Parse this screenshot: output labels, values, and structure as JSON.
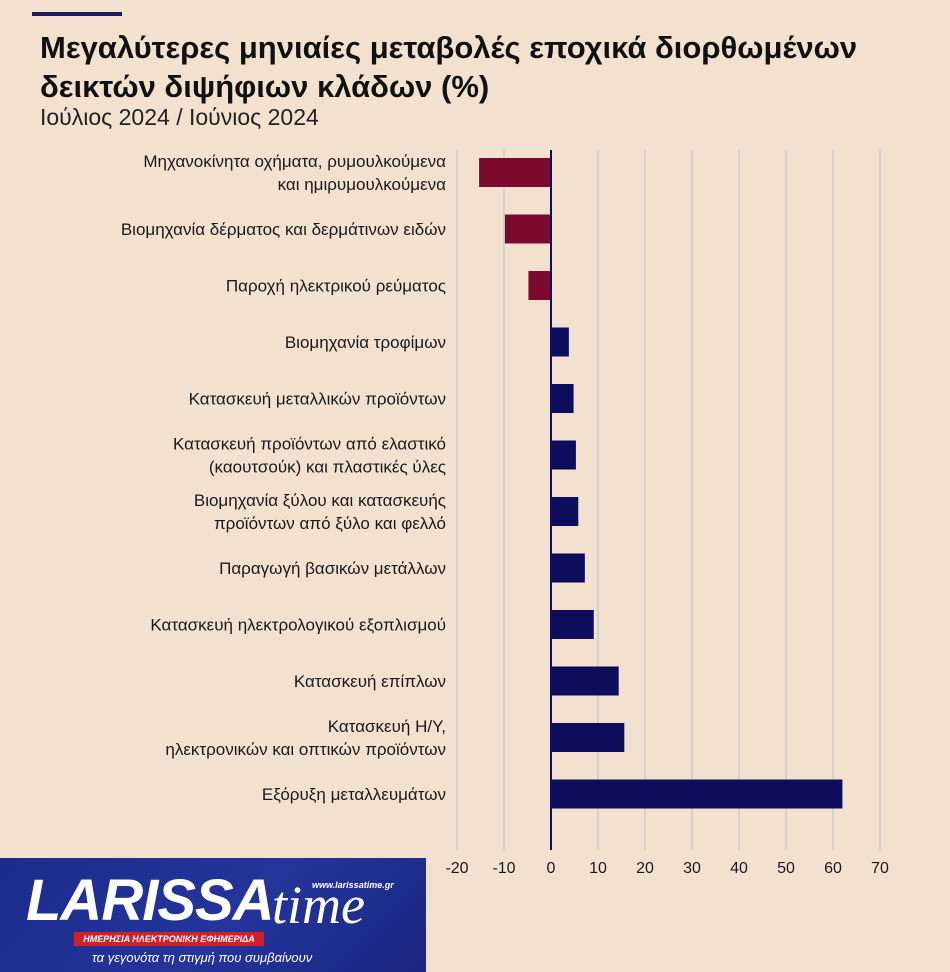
{
  "header": {
    "title": "Μεγαλύτερες μηνιαίες μεταβολές εποχικά διορθωμένων δεικτών διψήφιων κλάδων (%)",
    "subtitle": "Ιούλιος 2024 / Ιούνιος 2024"
  },
  "chart_data": {
    "type": "bar",
    "orientation": "horizontal",
    "categories": [
      [
        "Μηχανοκίνητα οχήματα, ρυμουλκούμενα",
        "και ημιρυμουλκούμενα"
      ],
      [
        "Βιομηχανία δέρματος και δερμάτινων ειδών"
      ],
      [
        "Παροχή ηλεκτρικού ρεύματος"
      ],
      [
        "Βιομηχανία τροφίμων"
      ],
      [
        "Κατασκευή μεταλλικών προϊόντων"
      ],
      [
        "Κατασκευή προϊόντων από ελαστικό",
        "(καουτσούκ) και πλαστικές ύλες"
      ],
      [
        "Βιομηχανία ξύλου και κατασκευής",
        "προϊόντων από ξύλο και φελλό"
      ],
      [
        "Παραγωγή βασικών μετάλλων"
      ],
      [
        "Κατασκευή ηλεκτρολογικού εξοπλισμού"
      ],
      [
        "Κατασκευή επίπλων"
      ],
      [
        "Κατασκευή Η/Υ,",
        "ηλεκτρονικών και οπτικών προϊόντων"
      ],
      [
        "Εξόρυξη μεταλλευμάτων"
      ]
    ],
    "values": [
      -15.3,
      -9.8,
      -4.8,
      3.8,
      4.8,
      5.3,
      5.8,
      7.2,
      9.1,
      14.4,
      15.6,
      62.0
    ],
    "xlim": [
      -20,
      70
    ],
    "xticks": [
      "-20",
      "-10",
      "0",
      "10",
      "20",
      "30",
      "40",
      "50",
      "60",
      "70"
    ],
    "grid": true,
    "colors": {
      "negative": "#7d0a2e",
      "positive": "#0d0d5c"
    }
  },
  "logo": {
    "wordmark": "LARISSA",
    "wordmark_suffix": "time",
    "url": "www.larissatime.gr",
    "band_text": "ΗΜΕΡΗΣΙΑ ΗΛΕΚΤΡΟΝΙΚΗ ΕΦΗΜΕΡΙΔΑ",
    "slogan": "τα γεγονότα τη στιγμή που συμβαίνουν"
  }
}
